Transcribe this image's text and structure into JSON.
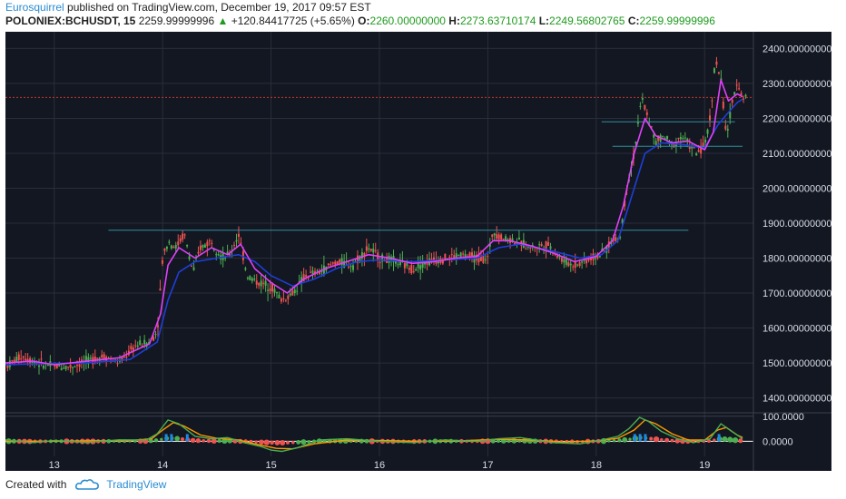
{
  "header": {
    "author": "Eurosquirrel",
    "published": " published on TradingView.com, December 19, 2017 09:57 EST",
    "symbol": "POLONIEX:BCHUSDT, 15",
    "last": "2259.99999996",
    "change_arrow": "▲",
    "change": "+120.84417725 (+5.65%)",
    "o_label": "O:",
    "o_value": "2260.00000000",
    "h_label": "H:",
    "h_value": "2273.63710174",
    "l_label": "L:",
    "l_value": "2249.56802765",
    "c_label": "C:",
    "c_value": "2259.99999996"
  },
  "footer": {
    "created_with": "Created with",
    "brand": "TradingView"
  },
  "colors": {
    "background": "#131722",
    "grid": "#2a2e39",
    "up": "#4caf50",
    "down": "#ef5350",
    "ma_fast": "#e040fb",
    "ma_slow": "#1e3fd8",
    "hline": "#2f8f9d",
    "price_line": "#c0392b"
  },
  "chart_data": [
    {
      "type": "line",
      "title": "",
      "x_tick_labels": [
        "13",
        "14",
        "15",
        "16",
        "17",
        "18",
        "19"
      ],
      "y_tick_labels": [
        "1400.00000000",
        "1500.00000000",
        "1600.00000000",
        "1700.00000000",
        "1800.00000000",
        "1900.00000000",
        "2000.00000000",
        "2100.00000000",
        "2200.00000000",
        "2300.00000000",
        "2400.00000000"
      ],
      "ylim": [
        1360,
        2440
      ],
      "xlim": [
        12.55,
        19.45
      ],
      "grid": true,
      "current_price": 2259.99999996,
      "horizontal_levels": [
        {
          "from": 13.5,
          "to": 18.85,
          "y": 1880
        },
        {
          "from": 18.05,
          "to": 19.28,
          "y": 2190
        },
        {
          "from": 18.15,
          "to": 19.35,
          "y": 2120
        }
      ],
      "series": [
        {
          "key": "price",
          "x": [
            12.55,
            12.7,
            12.85,
            13.0,
            13.15,
            13.3,
            13.45,
            13.6,
            13.75,
            13.88,
            13.95,
            14.0,
            14.05,
            14.12,
            14.2,
            14.28,
            14.35,
            14.45,
            14.55,
            14.62,
            14.7,
            14.78,
            14.88,
            15.0,
            15.1,
            15.2,
            15.32,
            15.45,
            15.6,
            15.75,
            15.9,
            16.0,
            16.15,
            16.3,
            16.45,
            16.6,
            16.75,
            16.9,
            17.0,
            17.05,
            17.12,
            17.25,
            17.4,
            17.55,
            17.7,
            17.8,
            17.95,
            18.05,
            18.15,
            18.22,
            18.28,
            18.35,
            18.42,
            18.48,
            18.55,
            18.62,
            18.7,
            18.78,
            18.85,
            18.92,
            19.0,
            19.05,
            19.1,
            19.15,
            19.2,
            19.25,
            19.3,
            19.35
          ],
          "y": [
            1490,
            1520,
            1500,
            1490,
            1490,
            1505,
            1520,
            1500,
            1550,
            1560,
            1590,
            1800,
            1850,
            1830,
            1870,
            1760,
            1830,
            1850,
            1800,
            1810,
            1870,
            1750,
            1730,
            1720,
            1680,
            1700,
            1750,
            1760,
            1790,
            1780,
            1830,
            1800,
            1790,
            1770,
            1790,
            1800,
            1810,
            1800,
            1800,
            1880,
            1860,
            1850,
            1830,
            1840,
            1790,
            1780,
            1800,
            1810,
            1850,
            1860,
            2000,
            2100,
            2260,
            2200,
            2130,
            2150,
            2120,
            2150,
            2130,
            2100,
            2120,
            2200,
            2370,
            2310,
            2150,
            2230,
            2310,
            2260
          ]
        },
        {
          "key": "ma_fast",
          "x": [
            12.55,
            12.8,
            13.0,
            13.3,
            13.6,
            13.88,
            13.98,
            14.05,
            14.15,
            14.3,
            14.45,
            14.6,
            14.72,
            14.85,
            15.0,
            15.15,
            15.3,
            15.5,
            15.7,
            15.9,
            16.1,
            16.3,
            16.5,
            16.7,
            16.9,
            17.05,
            17.2,
            17.4,
            17.6,
            17.8,
            18.0,
            18.15,
            18.25,
            18.35,
            18.45,
            18.55,
            18.7,
            18.85,
            19.0,
            19.08,
            19.15,
            19.22,
            19.3,
            19.35
          ],
          "y": [
            1500,
            1505,
            1495,
            1505,
            1515,
            1555,
            1640,
            1780,
            1830,
            1800,
            1830,
            1810,
            1840,
            1770,
            1730,
            1700,
            1740,
            1770,
            1790,
            1810,
            1800,
            1785,
            1790,
            1800,
            1805,
            1850,
            1850,
            1835,
            1815,
            1790,
            1805,
            1850,
            1950,
            2100,
            2200,
            2150,
            2130,
            2135,
            2110,
            2160,
            2310,
            2250,
            2270,
            2262
          ]
        },
        {
          "key": "ma_slow",
          "x": [
            12.55,
            12.9,
            13.3,
            13.7,
            13.95,
            14.05,
            14.15,
            14.3,
            14.5,
            14.7,
            14.85,
            15.0,
            15.2,
            15.4,
            15.6,
            15.8,
            16.0,
            16.3,
            16.6,
            16.9,
            17.1,
            17.3,
            17.6,
            17.85,
            18.05,
            18.2,
            18.32,
            18.45,
            18.6,
            18.8,
            19.0,
            19.12,
            19.2,
            19.3,
            19.35
          ],
          "y": [
            1495,
            1498,
            1500,
            1510,
            1560,
            1680,
            1760,
            1790,
            1800,
            1810,
            1790,
            1750,
            1720,
            1740,
            1770,
            1790,
            1795,
            1790,
            1795,
            1800,
            1830,
            1840,
            1820,
            1800,
            1810,
            1850,
            1970,
            2100,
            2130,
            2125,
            2115,
            2180,
            2210,
            2245,
            2255
          ]
        }
      ]
    },
    {
      "type": "line",
      "title": "",
      "y_tick_labels": [
        "100.0000",
        "0.0000"
      ],
      "ylim": [
        -60,
        110
      ],
      "xlim": [
        12.55,
        19.45
      ],
      "series": [
        {
          "key": "osc_green",
          "x": [
            12.55,
            12.8,
            13.0,
            13.3,
            13.6,
            13.85,
            13.95,
            14.05,
            14.15,
            14.3,
            14.45,
            14.6,
            14.75,
            14.9,
            15.0,
            15.1,
            15.25,
            15.45,
            15.7,
            16.0,
            16.3,
            16.6,
            16.9,
            17.1,
            17.3,
            17.6,
            17.85,
            18.05,
            18.2,
            18.3,
            18.4,
            18.48,
            18.6,
            18.75,
            18.9,
            19.05,
            19.15,
            19.25,
            19.35
          ],
          "y": [
            5,
            -5,
            3,
            -4,
            6,
            5,
            30,
            85,
            70,
            20,
            10,
            15,
            -5,
            -20,
            -35,
            -40,
            -25,
            5,
            10,
            0,
            -5,
            5,
            0,
            10,
            15,
            -5,
            -10,
            5,
            20,
            50,
            95,
            80,
            40,
            10,
            -5,
            10,
            70,
            40,
            10
          ]
        },
        {
          "key": "osc_orange",
          "x": [
            12.55,
            12.9,
            13.3,
            13.7,
            13.9,
            14.0,
            14.1,
            14.2,
            14.35,
            14.5,
            14.7,
            14.9,
            15.05,
            15.2,
            15.4,
            15.7,
            16.0,
            16.4,
            16.8,
            17.1,
            17.4,
            17.7,
            18.0,
            18.2,
            18.35,
            18.45,
            18.55,
            18.7,
            18.85,
            19.0,
            19.12,
            19.2,
            19.3,
            19.35
          ],
          "y": [
            0,
            0,
            2,
            3,
            10,
            45,
            75,
            60,
            25,
            12,
            5,
            -15,
            -28,
            -30,
            -10,
            5,
            3,
            0,
            3,
            8,
            5,
            -3,
            2,
            12,
            45,
            85,
            70,
            30,
            5,
            5,
            45,
            55,
            25,
            15
          ]
        }
      ]
    }
  ]
}
